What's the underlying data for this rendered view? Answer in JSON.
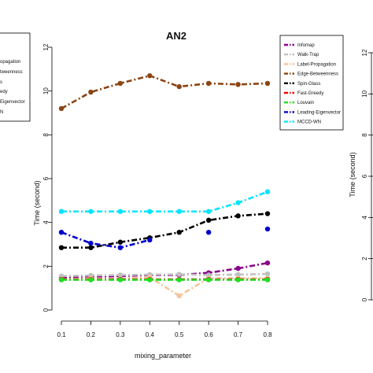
{
  "chart_data": {
    "type": "line",
    "title": "AN2",
    "xlabel": "mixing_parameter",
    "ylabel": "Time (second)",
    "x": [
      0.1,
      0.2,
      0.3,
      0.4,
      0.5,
      0.6,
      0.7,
      0.8
    ],
    "x_ticks": [
      "0.1",
      "0.2",
      "0.3",
      "0.4",
      "0.5",
      "0.6",
      "0.7",
      "0.8"
    ],
    "y_ticks": [
      "0",
      "2",
      "4",
      "6",
      "8",
      "10",
      "12"
    ],
    "ylim": [
      0,
      12
    ],
    "legend_position": "right",
    "series": [
      {
        "name": "Infomap",
        "color": "#8b008b",
        "values": [
          1.5,
          1.52,
          1.55,
          1.6,
          1.6,
          1.7,
          1.9,
          2.15
        ]
      },
      {
        "name": "Walk-Trap",
        "color": "#c0c0c0",
        "values": [
          1.55,
          1.58,
          1.6,
          1.62,
          1.63,
          1.6,
          1.62,
          1.65
        ]
      },
      {
        "name": "Label-Propagation",
        "color": "#f4c49a",
        "values": [
          1.4,
          1.45,
          1.42,
          1.5,
          0.65,
          1.45,
          1.45,
          1.45
        ]
      },
      {
        "name": "Edge-Betweenness",
        "color": "#8b4513",
        "values": [
          9.2,
          9.95,
          10.35,
          10.7,
          10.2,
          10.35,
          10.3,
          10.35
        ]
      },
      {
        "name": "Spin-Glass",
        "color": "#000000",
        "values": [
          2.85,
          2.85,
          3.1,
          3.3,
          3.55,
          4.1,
          4.3,
          4.4
        ]
      },
      {
        "name": "Fast-Greedy",
        "color": "#ff0000",
        "values": [
          1.4,
          1.4,
          1.4,
          1.4,
          1.4,
          1.4,
          1.4,
          1.4
        ]
      },
      {
        "name": "Louvain",
        "color": "#22dd22",
        "values": [
          1.38,
          1.38,
          1.38,
          1.38,
          1.38,
          1.38,
          1.38,
          1.38
        ]
      },
      {
        "name": "Leading-Eigenvector",
        "color": "#0000cc",
        "values": [
          3.55,
          3.05,
          2.85,
          3.2,
          null,
          3.55,
          null,
          3.7
        ]
      },
      {
        "name": "MCCD-WN",
        "color": "#00e5ff",
        "values": [
          4.5,
          4.5,
          4.5,
          4.5,
          4.5,
          4.5,
          4.9,
          5.4
        ]
      }
    ]
  },
  "left_panel": {
    "legend_fragments": [
      "opagation",
      "tweenness",
      "s",
      "edy",
      "Eigenvector",
      "N"
    ]
  },
  "right_panel": {
    "ylabel": "Time (second)",
    "y_ticks": [
      "0",
      "2",
      "4",
      "6",
      "8",
      "10",
      "12"
    ]
  }
}
